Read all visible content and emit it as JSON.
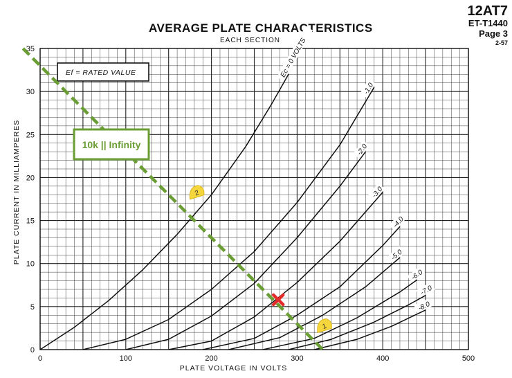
{
  "header": {
    "tube": "12AT7",
    "code": "ET-T1440",
    "page": "Page 3",
    "date": "2-57"
  },
  "chart_data": {
    "type": "line",
    "title": "AVERAGE PLATE CHARACTERISTICS",
    "subtitle": "EACH SECTION",
    "xlabel": "PLATE VOLTAGE IN VOLTS",
    "ylabel": "PLATE CURRENT IN MILLIAMPERES",
    "xlim": [
      0,
      500
    ],
    "ylim": [
      0,
      35
    ],
    "xticks": [
      "0",
      "100",
      "200",
      "300",
      "400",
      "500"
    ],
    "yticks": [
      "0",
      "5",
      "10",
      "15",
      "20",
      "25",
      "30",
      "35"
    ],
    "grid": true,
    "heater_note": "Ef = RATED VALUE",
    "series": [
      {
        "name": "Ec = 0 VOLTS",
        "x": [
          0,
          40,
          80,
          120,
          160,
          200,
          240,
          270,
          290
        ],
        "y": [
          0,
          2.6,
          5.7,
          9.3,
          13.4,
          18.0,
          23.6,
          28.5,
          32.0
        ]
      },
      {
        "name": "-1.0",
        "x": [
          50,
          100,
          150,
          200,
          250,
          300,
          350,
          390
        ],
        "y": [
          0,
          1.2,
          3.5,
          7.0,
          11.4,
          17.1,
          23.8,
          30.5
        ]
      },
      {
        "name": "-2.0",
        "x": [
          100,
          150,
          200,
          250,
          300,
          350,
          380
        ],
        "y": [
          0,
          1.2,
          3.9,
          7.7,
          13.0,
          19.0,
          23.0
        ]
      },
      {
        "name": "-3.0",
        "x": [
          150,
          200,
          250,
          300,
          350,
          400
        ],
        "y": [
          0,
          1.0,
          3.8,
          7.8,
          12.6,
          18.3
        ]
      },
      {
        "name": "-4.0",
        "x": [
          190,
          250,
          300,
          350,
          400,
          420
        ],
        "y": [
          0,
          1.3,
          4.0,
          7.3,
          12.1,
          14.3
        ]
      },
      {
        "name": "-5.0",
        "x": [
          220,
          280,
          330,
          380,
          420
        ],
        "y": [
          0,
          1.4,
          4.0,
          7.3,
          10.7
        ]
      },
      {
        "name": "-6.0",
        "x": [
          260,
          320,
          370,
          420,
          440
        ],
        "y": [
          0,
          1.3,
          3.7,
          6.7,
          8.1
        ]
      },
      {
        "name": "-7.0",
        "x": [
          290,
          340,
          390,
          430,
          450
        ],
        "y": [
          0,
          1.2,
          3.2,
          5.2,
          6.3
        ]
      },
      {
        "name": "-8.0",
        "x": [
          320,
          370,
          410,
          450
        ],
        "y": [
          0,
          1.2,
          2.7,
          4.6
        ]
      }
    ],
    "load_line": {
      "label": "10k || Infinity",
      "x": [
        -20,
        330
      ],
      "y": [
        35,
        0
      ],
      "color": "#6a9e35"
    },
    "markers": [
      {
        "label": "1",
        "x": 332,
        "y": 2.7,
        "color": "#f5d63c"
      },
      {
        "label": "2",
        "x": 183,
        "y": 18.2,
        "color": "#f5d63c"
      },
      {
        "label": "",
        "x": 278,
        "y": 5.8,
        "color": "#e32b2b",
        "shape": "x"
      }
    ]
  }
}
